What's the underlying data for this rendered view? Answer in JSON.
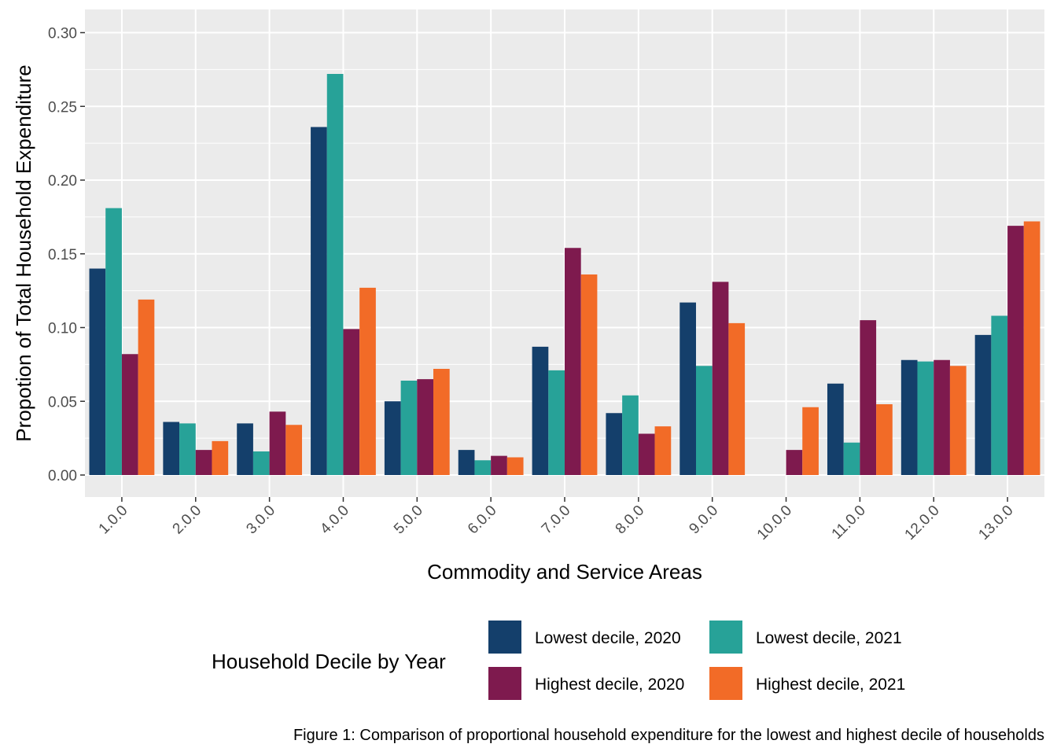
{
  "chart_data": {
    "type": "bar",
    "categories": [
      "1.0.0",
      "2.0.0",
      "3.0.0",
      "4.0.0",
      "5.0.0",
      "6.0.0",
      "7.0.0",
      "8.0.0",
      "9.0.0",
      "10.0.0",
      "11.0.0",
      "12.0.0",
      "13.0.0"
    ],
    "series": [
      {
        "name": "Lowest decile, 2020",
        "color": "#143F6B",
        "values": [
          0.14,
          0.036,
          0.035,
          0.236,
          0.05,
          0.017,
          0.087,
          0.042,
          0.117,
          0.0,
          0.062,
          0.078,
          0.095
        ]
      },
      {
        "name": "Lowest decile, 2021",
        "color": "#27A298",
        "values": [
          0.181,
          0.035,
          0.016,
          0.272,
          0.064,
          0.01,
          0.071,
          0.054,
          0.074,
          0.0,
          0.022,
          0.077,
          0.108
        ]
      },
      {
        "name": "Highest decile, 2020",
        "color": "#7E1A4E",
        "values": [
          0.082,
          0.017,
          0.043,
          0.099,
          0.065,
          0.013,
          0.154,
          0.028,
          0.131,
          0.017,
          0.105,
          0.078,
          0.169
        ]
      },
      {
        "name": "Highest decile, 2021",
        "color": "#F26B27",
        "values": [
          0.119,
          0.023,
          0.034,
          0.127,
          0.072,
          0.012,
          0.136,
          0.033,
          0.103,
          0.046,
          0.048,
          0.074,
          0.172
        ]
      }
    ],
    "xlabel": "Commodity and Service Areas",
    "ylabel": "Propotion of Total Household Expenditure",
    "ylim": [
      -0.015,
      0.318
    ],
    "yticks": [
      "0.00",
      "0.05",
      "0.10",
      "0.15",
      "0.20",
      "0.25",
      "0.30"
    ],
    "grid": true,
    "legend": {
      "title": "Household Decile by Year",
      "position": "bottom"
    },
    "caption": "Figure 1: Comparison of proportional household expenditure for the lowest and highest decile of households",
    "panel_color": "#EBEBEB"
  }
}
